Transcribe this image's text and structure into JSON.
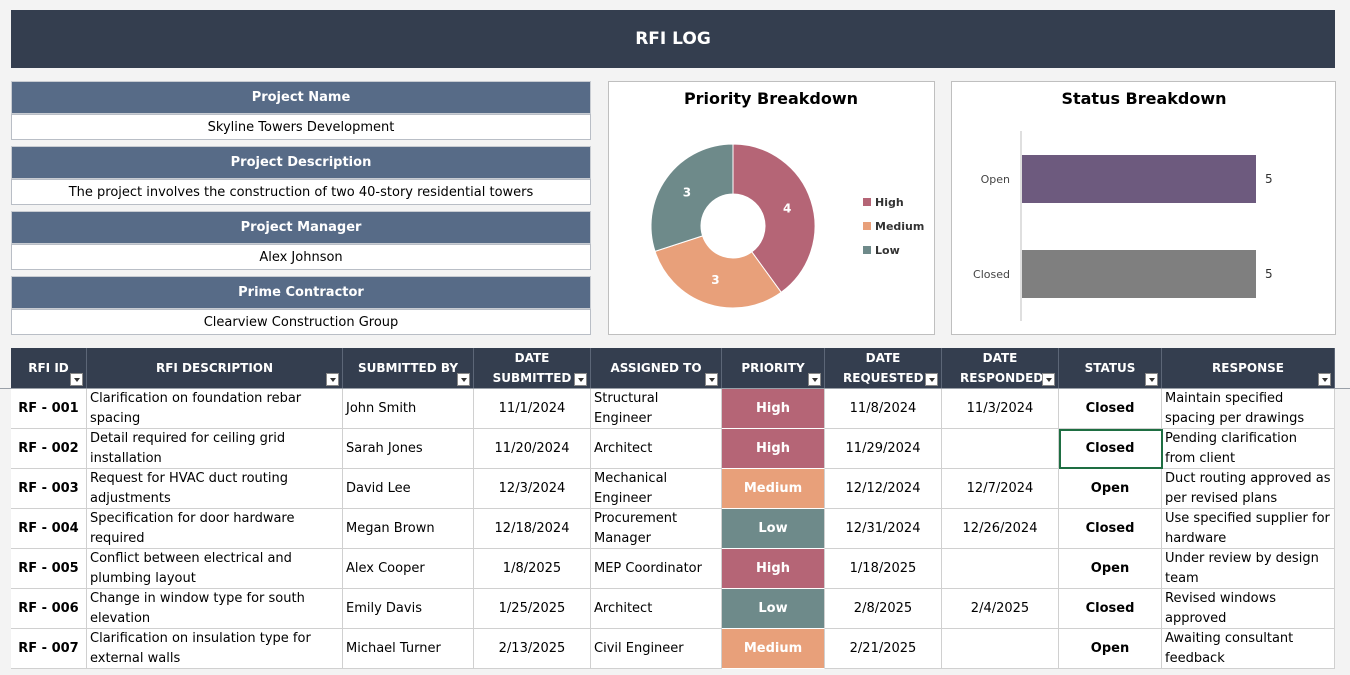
{
  "header": {
    "title": "RFI LOG"
  },
  "project": {
    "fields": [
      {
        "label": "Project Name",
        "value": "Skyline Towers Development"
      },
      {
        "label": "Project Description",
        "value": "The project involves the construction of two 40-story residential towers"
      },
      {
        "label": "Project Manager",
        "value": "Alex Johnson"
      },
      {
        "label": "Prime Contractor",
        "value": "Clearview Construction Group"
      }
    ]
  },
  "chart_data": [
    {
      "type": "pie",
      "title": "Priority Breakdown",
      "categories": [
        "High",
        "Medium",
        "Low"
      ],
      "values": [
        4,
        3,
        3
      ],
      "colors": [
        "#b56576",
        "#e8a07a",
        "#6e8a8a"
      ],
      "hole": true
    },
    {
      "type": "bar",
      "orientation": "horizontal",
      "title": "Status Breakdown",
      "categories": [
        "Open",
        "Closed"
      ],
      "values": [
        5,
        5
      ],
      "colors": [
        "#6d5a7e",
        "#7f7f7f"
      ],
      "xlim": [
        0,
        5
      ]
    }
  ],
  "table": {
    "columns": [
      "RFI ID",
      "RFI DESCRIPTION",
      "SUBMITTED BY",
      "DATE SUBMITTED",
      "ASSIGNED TO",
      "PRIORITY",
      "DATE REQUESTED",
      "DATE RESPONDED",
      "STATUS",
      "RESPONSE"
    ],
    "rows": [
      [
        "RF - 001",
        "Clarification on foundation rebar spacing",
        "John Smith",
        "11/1/2024",
        "Structural Engineer",
        "High",
        "11/8/2024",
        "11/3/2024",
        "Closed",
        "Maintain specified spacing per drawings"
      ],
      [
        "RF - 002",
        "Detail required for ceiling grid installation",
        "Sarah Jones",
        "11/20/2024",
        "Architect",
        "High",
        "11/29/2024",
        null,
        "Closed",
        "Pending clarification from client"
      ],
      [
        "RF - 003",
        "Request for HVAC duct routing adjustments",
        "David Lee",
        "12/3/2024",
        "Mechanical Engineer",
        "Medium",
        "12/12/2024",
        "12/7/2024",
        "Open",
        "Duct routing approved as per revised plans"
      ],
      [
        "RF - 004",
        "Specification for door hardware required",
        "Megan Brown",
        "12/18/2024",
        "Procurement Manager",
        "Low",
        "12/31/2024",
        "12/26/2024",
        "Closed",
        "Use specified supplier for hardware"
      ],
      [
        "RF - 005",
        "Conflict between electrical and plumbing layout",
        "Alex Cooper",
        "1/8/2025",
        "MEP Coordinator",
        "High",
        "1/18/2025",
        null,
        "Open",
        "Under review by design team"
      ],
      [
        "RF - 006",
        "Change in window type for south elevation",
        "Emily Davis",
        "1/25/2025",
        "Architect",
        "Low",
        "2/8/2025",
        "2/4/2025",
        "Closed",
        "Revised windows approved"
      ],
      [
        "RF - 007",
        "Clarification on insulation type for external walls",
        "Michael Turner",
        "2/13/2025",
        "Civil Engineer",
        "Medium",
        "2/21/2025",
        null,
        "Open",
        "Awaiting consultant feedback"
      ]
    ]
  }
}
